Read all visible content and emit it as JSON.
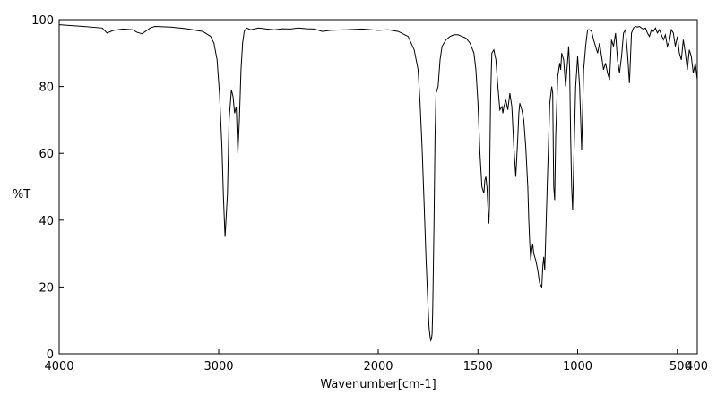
{
  "chart_data": {
    "type": "line",
    "title": "",
    "xlabel": "Wavenumber[cm-1]",
    "ylabel": "%T",
    "xlim": [
      4000,
      400
    ],
    "ylim": [
      0,
      100
    ],
    "x_axis_scale": "piecewise-linear: 2000 cm-1 per half-width from 4000 to 2000, 1600 cm-1 for the remainder to 400",
    "x_ticks": [
      {
        "value": 4000,
        "label": "4000"
      },
      {
        "value": 3000,
        "label": "3000"
      },
      {
        "value": 2000,
        "label": "2000"
      },
      {
        "value": 1500,
        "label": "1500"
      },
      {
        "value": 1000,
        "label": "1000"
      },
      {
        "value": 500,
        "label": "500"
      },
      {
        "value": 400,
        "label": "400"
      }
    ],
    "y_ticks": [
      {
        "value": 0,
        "label": "0"
      },
      {
        "value": 20,
        "label": "20"
      },
      {
        "value": 40,
        "label": "40"
      },
      {
        "value": 60,
        "label": "60"
      },
      {
        "value": 80,
        "label": "80"
      },
      {
        "value": 100,
        "label": "100"
      }
    ],
    "grid": false,
    "line_color": "#000000",
    "series": [
      {
        "x": [
          4000,
          3850,
          3730,
          3700,
          3660,
          3600,
          3540,
          3510,
          3480,
          3430,
          3400,
          3300,
          3200,
          3100,
          3050,
          3030,
          3010,
          2995,
          2980,
          2970,
          2960,
          2945,
          2935,
          2920,
          2910,
          2900,
          2890,
          2880,
          2870,
          2860,
          2850,
          2840,
          2825,
          2800,
          2750,
          2700,
          2650,
          2600,
          2550,
          2500,
          2450,
          2400,
          2350,
          2300,
          2200,
          2100,
          2000,
          1950,
          1900,
          1850,
          1820,
          1800,
          1790,
          1780,
          1770,
          1760,
          1750,
          1745,
          1740,
          1736,
          1733,
          1730,
          1727,
          1725,
          1720,
          1715,
          1710,
          1700,
          1690,
          1680,
          1660,
          1640,
          1620,
          1600,
          1580,
          1560,
          1540,
          1520,
          1510,
          1500,
          1490,
          1480,
          1470,
          1465,
          1460,
          1455,
          1450,
          1447,
          1445,
          1442,
          1440,
          1437,
          1433,
          1430,
          1420,
          1410,
          1400,
          1390,
          1380,
          1375,
          1370,
          1360,
          1350,
          1340,
          1330,
          1320,
          1310,
          1300,
          1295,
          1290,
          1280,
          1270,
          1260,
          1250,
          1245,
          1240,
          1235,
          1230,
          1225,
          1220,
          1210,
          1200,
          1190,
          1180,
          1175,
          1170,
          1165,
          1160,
          1150,
          1140,
          1130,
          1125,
          1120,
          1115,
          1110,
          1100,
          1090,
          1085,
          1080,
          1070,
          1060,
          1050,
          1045,
          1040,
          1035,
          1030,
          1025,
          1020,
          1010,
          1000,
          990,
          980,
          970,
          960,
          950,
          940,
          930,
          920,
          910,
          900,
          890,
          880,
          870,
          860,
          850,
          840,
          830,
          820,
          810,
          800,
          790,
          780,
          770,
          760,
          750,
          740,
          730,
          720,
          710,
          700,
          690,
          680,
          670,
          660,
          650,
          640,
          630,
          620,
          610,
          600,
          590,
          580,
          570,
          560,
          550,
          540,
          530,
          520,
          510,
          500,
          490,
          480,
          470,
          460,
          450,
          440,
          430,
          420,
          410,
          400
        ],
        "y": [
          98.5,
          98.0,
          97.5,
          96.0,
          96.8,
          97.2,
          97.0,
          96.2,
          95.8,
          97.5,
          98.0,
          97.8,
          97.3,
          96.5,
          95.0,
          93.0,
          88.0,
          78.0,
          62.0,
          47.0,
          35.0,
          48.0,
          70.0,
          79.0,
          77.0,
          72.0,
          74.0,
          60.0,
          70.0,
          85.0,
          93.0,
          96.5,
          97.5,
          97.0,
          97.5,
          97.2,
          97.0,
          97.3,
          97.2,
          97.5,
          97.3,
          97.2,
          96.5,
          96.8,
          97.0,
          97.2,
          96.8,
          97.0,
          96.5,
          95.0,
          91.0,
          85.0,
          75.0,
          62.0,
          45.0,
          28.0,
          14.0,
          8.0,
          5.0,
          4.0,
          4.5,
          6.0,
          12.0,
          20.0,
          40.0,
          65.0,
          78.0,
          80.0,
          88.0,
          92.0,
          94.0,
          95.0,
          95.5,
          95.5,
          95.0,
          94.5,
          93.0,
          90.0,
          85.0,
          75.0,
          60.0,
          50.0,
          48.0,
          52.0,
          53.0,
          50.0,
          44.0,
          40.0,
          39.0,
          45.0,
          60.0,
          75.0,
          85.0,
          90.0,
          91.0,
          88.0,
          80.0,
          73.0,
          74.0,
          72.0,
          74.0,
          76.0,
          73.0,
          78.0,
          74.0,
          62.0,
          53.0,
          65.0,
          72.0,
          75.0,
          73.0,
          70.0,
          62.0,
          50.0,
          40.0,
          33.0,
          28.0,
          31.0,
          33.0,
          30.0,
          28.0,
          25.0,
          21.0,
          20.0,
          26.0,
          29.0,
          25.0,
          35.0,
          55.0,
          75.0,
          80.0,
          78.0,
          50.0,
          46.0,
          65.0,
          83.0,
          87.0,
          85.0,
          90.0,
          88.0,
          80.0,
          88.0,
          92.0,
          85.0,
          65.0,
          50.0,
          43.0,
          55.0,
          80.0,
          89.0,
          80.0,
          61.0,
          85.0,
          92.0,
          97.0,
          97.0,
          96.5,
          94.0,
          92.0,
          90.0,
          93.0,
          89.0,
          85.0,
          87.0,
          84.0,
          82.0,
          94.0,
          92.0,
          96.0,
          88.0,
          84.0,
          89.0,
          96.0,
          97.0,
          90.0,
          81.0,
          96.0,
          97.5,
          98.0,
          97.8,
          98.0,
          97.5,
          97.2,
          97.5,
          96.0,
          95.0,
          97.0,
          96.5,
          97.5,
          96.0,
          97.0,
          95.5,
          94.0,
          95.5,
          92.0,
          93.5,
          97.0,
          96.0,
          92.0,
          95.0,
          90.0,
          88.0,
          94.0,
          90.0,
          85.0,
          91.0,
          89.0,
          84.0,
          87.0,
          82.0
        ]
      }
    ]
  }
}
